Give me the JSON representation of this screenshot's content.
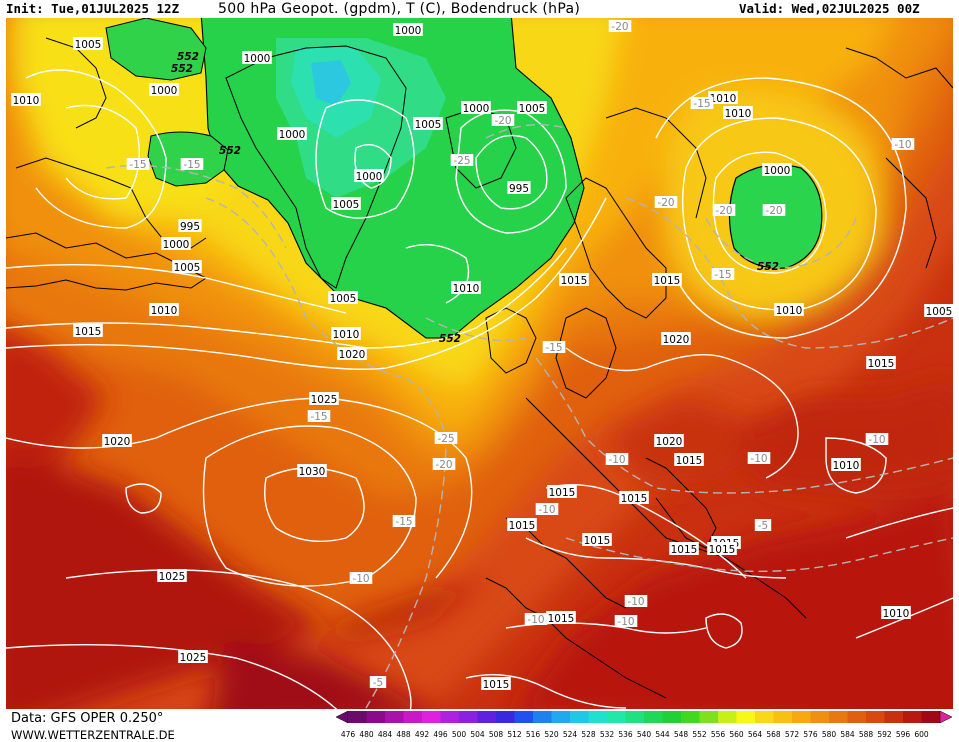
{
  "header": {
    "init": "Init: Tue,01JUL2025 12Z",
    "title": "500 hPa Geopot. (gpdm), T (C), Bodendruck (hPa)",
    "valid": "Valid: Wed,02JUL2025 00Z"
  },
  "footer": {
    "source": "Data: GFS OPER 0.250°",
    "site": "WWW.WETTERZENTRALE.DE"
  },
  "legend": {
    "ticks": [
      "476",
      "480",
      "484",
      "488",
      "492",
      "496",
      "500",
      "504",
      "508",
      "512",
      "516",
      "520",
      "524",
      "528",
      "532",
      "536",
      "540",
      "544",
      "548",
      "552",
      "556",
      "560",
      "564",
      "568",
      "572",
      "576",
      "580",
      "584",
      "588",
      "592",
      "596",
      "600"
    ],
    "colors": [
      "#6a0a6a",
      "#8a0a8a",
      "#aa10aa",
      "#c818c8",
      "#e020e0",
      "#b020e0",
      "#8a20e0",
      "#6020e0",
      "#3828e0",
      "#2050f0",
      "#2080f0",
      "#20a8f0",
      "#20c8e8",
      "#20e0d0",
      "#20e8a8",
      "#20e080",
      "#20d858",
      "#20d038",
      "#40d820",
      "#80e020",
      "#c8f018",
      "#f8f818",
      "#f8d818",
      "#f8c010",
      "#f8a810",
      "#f09010",
      "#e87810",
      "#e06010",
      "#d84810",
      "#c83010",
      "#b81810",
      "#a00818",
      "#e020a0"
    ]
  },
  "pressure_labels": [
    {
      "t": "1005",
      "c": "w"
    },
    {
      "t": "1000",
      "c": "w"
    },
    {
      "t": "1000",
      "c": "w"
    },
    {
      "t": "1010",
      "c": "w"
    },
    {
      "t": "1000",
      "c": "w"
    },
    {
      "t": "1000",
      "c": "w"
    },
    {
      "t": "1005",
      "c": "w"
    },
    {
      "t": "1000",
      "c": "w"
    },
    {
      "t": "1005",
      "c": "w"
    },
    {
      "t": "1000",
      "c": "w"
    },
    {
      "t": "1005",
      "c": "w"
    },
    {
      "t": "995",
      "c": "w"
    },
    {
      "t": "995",
      "c": "w"
    },
    {
      "t": "1000",
      "c": "w"
    },
    {
      "t": "1005",
      "c": "w"
    },
    {
      "t": "1010",
      "c": "w"
    },
    {
      "t": "1005",
      "c": "w"
    },
    {
      "t": "1010",
      "c": "w"
    },
    {
      "t": "1015",
      "c": "w"
    },
    {
      "t": "1015",
      "c": "w"
    },
    {
      "t": "1015",
      "c": "w"
    },
    {
      "t": "1010",
      "c": "w"
    },
    {
      "t": "1020",
      "c": "w"
    },
    {
      "t": "1025",
      "c": "w"
    },
    {
      "t": "1020",
      "c": "w"
    },
    {
      "t": "1030",
      "c": "w"
    },
    {
      "t": "1025",
      "c": "w"
    },
    {
      "t": "1025",
      "c": "w"
    },
    {
      "t": "1015",
      "c": "w"
    },
    {
      "t": "1015",
      "c": "w"
    },
    {
      "t": "1020",
      "c": "w"
    },
    {
      "t": "1020",
      "c": "w"
    },
    {
      "t": "1015",
      "c": "w"
    },
    {
      "t": "1015",
      "c": "w"
    },
    {
      "t": "1015",
      "c": "w"
    },
    {
      "t": "1015",
      "c": "w"
    },
    {
      "t": "1015",
      "c": "w"
    },
    {
      "t": "1015",
      "c": "w"
    },
    {
      "t": "1015",
      "c": "w"
    },
    {
      "t": "1010",
      "c": "w"
    },
    {
      "t": "1010",
      "c": "w"
    },
    {
      "t": "1000",
      "c": "w"
    },
    {
      "t": "1010",
      "c": "w"
    },
    {
      "t": "1005",
      "c": "w"
    },
    {
      "t": "1010",
      "c": "w"
    },
    {
      "t": "1015",
      "c": "w"
    },
    {
      "t": "1015",
      "c": "w"
    },
    {
      "t": "1010",
      "c": "w"
    }
  ],
  "temperature_labels": [
    "-20",
    "-15",
    "-20",
    "-25",
    "-15",
    "-20",
    "-15",
    "-20",
    "-25",
    "-20",
    "-15",
    "-10",
    "-10",
    "-5",
    "-10",
    "-10",
    "-15",
    "-15",
    "-10",
    "-10",
    "-5",
    "-10",
    "-15",
    "-10",
    "-20",
    "-10"
  ],
  "geopotential_labels": [
    "552",
    "552",
    "552",
    "552",
    "552"
  ]
}
